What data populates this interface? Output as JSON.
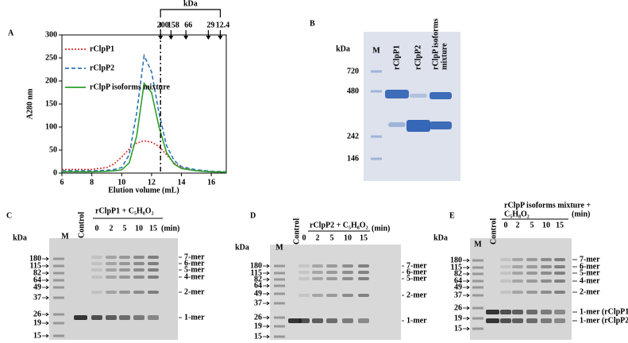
{
  "chart_data": {
    "type": "line",
    "label": "A",
    "xlabel": "Elution  volume (mL)",
    "ylabel": "A280 nm",
    "x": [
      6,
      7,
      8,
      9,
      9.5,
      10,
      10.5,
      11,
      11.5,
      12,
      12.5,
      13,
      13.5,
      14,
      15,
      16,
      17
    ],
    "series": [
      {
        "name": "rClpP1",
        "color": "#d62728",
        "dash": "dotted",
        "values": [
          8,
          8,
          8,
          12,
          20,
          35,
          52,
          65,
          70,
          67,
          58,
          40,
          22,
          12,
          5,
          3,
          2
        ]
      },
      {
        "name": "rClpP2",
        "color": "#2e75b6",
        "dash": "dashed",
        "values": [
          5,
          5,
          5,
          6,
          8,
          12,
          40,
          130,
          255,
          220,
          130,
          60,
          28,
          14,
          7,
          4,
          3
        ]
      },
      {
        "name": "rClpP isoforms mixture",
        "color": "#2ca02c",
        "dash": "solid",
        "values": [
          3,
          3,
          3,
          4,
          5,
          7,
          22,
          80,
          195,
          175,
          100,
          45,
          20,
          10,
          5,
          3,
          2
        ]
      }
    ],
    "xlim": [
      6,
      17
    ],
    "xticks": [
      6,
      8,
      10,
      12,
      14,
      16
    ],
    "ylim": [
      0,
      300
    ],
    "yticks": [
      0,
      50,
      100,
      150,
      200,
      250,
      300
    ],
    "grid": false,
    "legend": "top-left",
    "marker_unit": "kDa",
    "markers": [
      {
        "label": "200",
        "x": 12.6
      },
      {
        "label": "158",
        "x": 13.3
      },
      {
        "label": "66",
        "x": 14.3
      },
      {
        "label": "29",
        "x": 15.8
      },
      {
        "label": "12.4",
        "x": 16.6
      }
    ],
    "vline": 12.6
  },
  "panels": [
    {
      "label": "B",
      "unit": "kDa",
      "lanes": [
        [
          "M"
        ],
        [
          "rClpP1"
        ],
        [
          "rClpP2"
        ],
        [
          "rClpP isoforms",
          "mixture"
        ]
      ],
      "markers": [
        720,
        480,
        242,
        146
      ]
    },
    {
      "label": "C",
      "unit": "kDa",
      "lanes": [
        [
          "M"
        ],
        [
          "Control"
        ]
      ],
      "treatment": [
        "rClpP1 + C₅H₈O₂"
      ],
      "times": [
        0,
        2,
        5,
        10,
        15
      ],
      "time_unit": "(min)",
      "markers": [
        180,
        115,
        82,
        64,
        49,
        37,
        26,
        19,
        15
      ],
      "bands": [
        "7-mer",
        "6-mer",
        "5-mer",
        "4-mer",
        "2-mer",
        "1-mer"
      ]
    },
    {
      "label": "D",
      "unit": "kDa",
      "lanes": [
        [
          "M"
        ],
        [
          "Control"
        ]
      ],
      "treatment": [
        "rClpP2 + C₅H₈O₂"
      ],
      "times": [
        0,
        2,
        5,
        10,
        15
      ],
      "time_unit": "(min)",
      "markers": [
        180,
        115,
        82,
        64,
        49,
        37,
        26,
        19,
        15
      ],
      "bands": [
        "7-mer",
        "6-mer",
        "5-mer",
        "2-mer",
        "1-mer"
      ]
    },
    {
      "label": "E",
      "unit": "kDa",
      "lanes": [
        [
          "M"
        ],
        [
          "Control"
        ]
      ],
      "treatment": [
        "rClpP isoforms mixture +",
        "C₅H₈O₂"
      ],
      "times": [
        0,
        2,
        5,
        10,
        15
      ],
      "time_unit": "(min)",
      "markers": [
        180,
        115,
        82,
        64,
        49,
        37,
        26,
        19,
        15
      ],
      "bands": [
        "7-mer",
        "6-mer",
        "5-mer",
        "4-mer",
        "2-mer",
        "1-mer (rClpP1)",
        "1-mer (rClpP2)"
      ]
    }
  ]
}
